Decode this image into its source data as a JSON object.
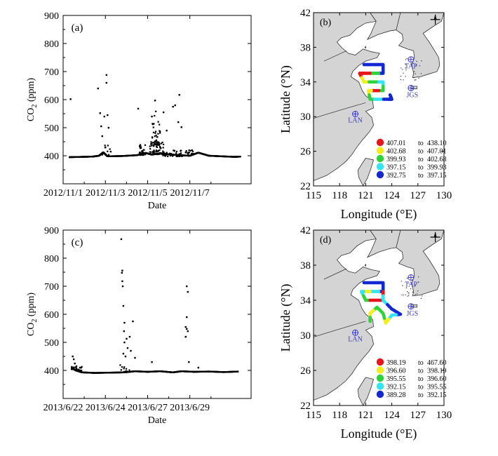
{
  "colors": {
    "sea": "#ffffff",
    "land": "#d4d4d4",
    "coast": "#333333",
    "station": "#3a3ad6",
    "points": "#000000"
  },
  "chart_data": [
    {
      "id": "a",
      "type": "scatter",
      "panel_label": "(a)",
      "xlabel": "Date",
      "ylabel_main": "CO",
      "ylabel_sub": "2",
      "ylabel_tail": " (ppm)",
      "ylim": [
        300,
        900
      ],
      "xlim": [
        0,
        8.9
      ],
      "yticks": [
        400,
        500,
        600,
        700,
        800,
        900
      ],
      "xticks": [
        {
          "label": "2012/11/1",
          "value": 0
        },
        {
          "label": "2012/11/3",
          "value": 2
        },
        {
          "label": "2012/11/5",
          "value": 4
        },
        {
          "label": "2012/11/7",
          "value": 6
        }
      ],
      "baseline": [
        [
          0.3,
          395
        ],
        [
          0.9,
          396
        ],
        [
          1.4,
          397
        ],
        [
          1.7,
          400
        ],
        [
          1.9,
          412
        ],
        [
          2.1,
          398
        ],
        [
          2.8,
          399
        ],
        [
          3.5,
          402
        ],
        [
          3.9,
          410
        ],
        [
          4.2,
          404
        ],
        [
          4.6,
          409
        ],
        [
          5.0,
          405
        ],
        [
          5.5,
          402
        ],
        [
          6.0,
          400
        ],
        [
          6.4,
          411
        ],
        [
          6.9,
          400
        ],
        [
          7.5,
          398
        ],
        [
          8.1,
          396
        ],
        [
          8.4,
          397
        ]
      ],
      "clusters": [
        {
          "x0": 3.6,
          "x1": 3.9,
          "y0": 402,
          "y1": 440,
          "n": 30
        },
        {
          "x0": 4.1,
          "x1": 4.8,
          "y0": 405,
          "y1": 450,
          "n": 60
        },
        {
          "x0": 4.2,
          "x1": 4.6,
          "y0": 440,
          "y1": 560,
          "n": 35
        },
        {
          "x0": 4.7,
          "x1": 6.2,
          "y0": 398,
          "y1": 420,
          "n": 50
        },
        {
          "x0": 1.8,
          "x1": 2.4,
          "y0": 402,
          "y1": 440,
          "n": 14
        }
      ],
      "outliers": [
        [
          0.35,
          602
        ],
        [
          1.65,
          640
        ],
        [
          1.75,
          552
        ],
        [
          1.8,
          505
        ],
        [
          1.85,
          470
        ],
        [
          2.05,
          688
        ],
        [
          2.05,
          660
        ],
        [
          1.95,
          540
        ],
        [
          2.1,
          545
        ],
        [
          2.15,
          500
        ],
        [
          2.0,
          430
        ],
        [
          2.25,
          415
        ],
        [
          4.35,
          597
        ],
        [
          3.55,
          568
        ],
        [
          4.2,
          540
        ],
        [
          5.5,
          617
        ],
        [
          5.3,
          580
        ],
        [
          5.2,
          575
        ],
        [
          4.9,
          490
        ],
        [
          4.75,
          555
        ],
        [
          5.6,
          502
        ],
        [
          5.45,
          520
        ],
        [
          5.8,
          412
        ],
        [
          6.1,
          420
        ]
      ]
    },
    {
      "id": "c",
      "type": "scatter",
      "panel_label": "(c)",
      "xlabel": "Date",
      "ylabel_main": "CO",
      "ylabel_sub": "2",
      "ylabel_tail": " (ppm)",
      "ylim": [
        300,
        900
      ],
      "xlim": [
        0,
        8.9
      ],
      "yticks": [
        400,
        500,
        600,
        700,
        800,
        900
      ],
      "xticks": [
        {
          "label": "2013/6/22",
          "value": 0
        },
        {
          "label": "2013/6/24",
          "value": 2
        },
        {
          "label": "2013/6/27",
          "value": 4
        },
        {
          "label": "2013/6/29",
          "value": 6
        }
      ],
      "baseline": [
        [
          0.4,
          410
        ],
        [
          0.6,
          400
        ],
        [
          0.9,
          393
        ],
        [
          1.5,
          391
        ],
        [
          2.2,
          392
        ],
        [
          2.9,
          393
        ],
        [
          3.4,
          397
        ],
        [
          4.0,
          395
        ],
        [
          4.6,
          397
        ],
        [
          5.2,
          393
        ],
        [
          5.6,
          397
        ],
        [
          6.2,
          395
        ],
        [
          6.9,
          396
        ],
        [
          7.6,
          394
        ],
        [
          8.3,
          396
        ]
      ],
      "clusters": [
        {
          "x0": 0.4,
          "x1": 0.9,
          "y0": 398,
          "y1": 420,
          "n": 25
        },
        {
          "x0": 2.7,
          "x1": 3.2,
          "y0": 395,
          "y1": 420,
          "n": 10
        }
      ],
      "outliers": [
        [
          0.45,
          450
        ],
        [
          0.5,
          440
        ],
        [
          0.55,
          425
        ],
        [
          0.8,
          410
        ],
        [
          2.75,
          868
        ],
        [
          2.8,
          756
        ],
        [
          2.78,
          748
        ],
        [
          2.8,
          718
        ],
        [
          2.82,
          700
        ],
        [
          2.85,
          630
        ],
        [
          2.9,
          570
        ],
        [
          2.88,
          540
        ],
        [
          2.9,
          500
        ],
        [
          2.85,
          460
        ],
        [
          2.95,
          450
        ],
        [
          3.0,
          513
        ],
        [
          3.05,
          480
        ],
        [
          3.3,
          575
        ],
        [
          3.15,
          520
        ],
        [
          3.2,
          470
        ],
        [
          3.4,
          445
        ],
        [
          4.2,
          430
        ],
        [
          5.85,
          700
        ],
        [
          5.9,
          680
        ],
        [
          5.85,
          590
        ],
        [
          5.8,
          555
        ],
        [
          5.85,
          548
        ],
        [
          5.9,
          540
        ],
        [
          5.8,
          520
        ],
        [
          5.95,
          430
        ],
        [
          6.4,
          410
        ]
      ]
    },
    {
      "id": "b",
      "type": "map",
      "panel_label": "(b)",
      "xlabel": "Longitude (°E)",
      "ylabel": "Latitude (°N)",
      "xlim": [
        115,
        130
      ],
      "ylim": [
        22,
        42
      ],
      "xticks": [
        115,
        118,
        121,
        124,
        127,
        130
      ],
      "yticks": [
        22,
        26,
        30,
        34,
        38,
        42
      ],
      "stations": [
        {
          "name": "TAP",
          "lon": 126.2,
          "lat": 36.6
        },
        {
          "name": "JGS",
          "lon": 126.2,
          "lat": 33.3
        },
        {
          "name": "LAN",
          "lon": 119.8,
          "lat": 30.3
        }
      ],
      "legend": [
        {
          "color": "#e8141c",
          "from": "407.01",
          "to": "438.10"
        },
        {
          "color": "#f2ee1e",
          "from": "402.68",
          "to": "407.01"
        },
        {
          "color": "#2fd23a",
          "from": "399.93",
          "to": "402.68"
        },
        {
          "color": "#33e5f0",
          "from": "397.15",
          "to": "399.93"
        },
        {
          "color": "#1428d2",
          "from": "392.75",
          "to": "397.15"
        }
      ],
      "track": [
        {
          "lon": 120.8,
          "lat": 36.0,
          "c": 4
        },
        {
          "lon": 122.0,
          "lat": 36.0,
          "c": 4
        },
        {
          "lon": 123.0,
          "lat": 36.0,
          "c": 4
        },
        {
          "lon": 123.0,
          "lat": 35.0,
          "c": 4
        },
        {
          "lon": 122.0,
          "lat": 35.0,
          "c": 2
        },
        {
          "lon": 121.0,
          "lat": 35.0,
          "c": 0
        },
        {
          "lon": 120.3,
          "lat": 35.0,
          "c": 0
        },
        {
          "lon": 120.8,
          "lat": 34.0,
          "c": 1
        },
        {
          "lon": 122.0,
          "lat": 34.0,
          "c": 2
        },
        {
          "lon": 123.0,
          "lat": 34.0,
          "c": 3
        },
        {
          "lon": 123.0,
          "lat": 33.0,
          "c": 2
        },
        {
          "lon": 122.0,
          "lat": 33.0,
          "c": 0
        },
        {
          "lon": 121.3,
          "lat": 33.0,
          "c": 1
        },
        {
          "lon": 121.5,
          "lat": 32.0,
          "c": 2
        },
        {
          "lon": 122.5,
          "lat": 32.0,
          "c": 3
        },
        {
          "lon": 123.6,
          "lat": 32.0,
          "c": 4
        },
        {
          "lon": 124.0,
          "lat": 32.0,
          "c": 4
        },
        {
          "lon": 123.8,
          "lat": 32.5,
          "c": 4
        }
      ]
    },
    {
      "id": "d",
      "type": "map",
      "panel_label": "(d)",
      "xlabel": "Longitude (°E)",
      "ylabel": "Latitude (°N)",
      "xlim": [
        115,
        130
      ],
      "ylim": [
        22,
        42
      ],
      "xticks": [
        115,
        118,
        121,
        124,
        127,
        130
      ],
      "yticks": [
        22,
        26,
        30,
        34,
        38,
        42
      ],
      "stations": [
        {
          "name": "TAP",
          "lon": 126.2,
          "lat": 36.6
        },
        {
          "name": "JGS",
          "lon": 126.2,
          "lat": 33.3
        },
        {
          "name": "LAN",
          "lon": 119.8,
          "lat": 30.3
        }
      ],
      "legend": [
        {
          "color": "#e8141c",
          "from": "398.19",
          "to": "467.60"
        },
        {
          "color": "#f2ee1e",
          "from": "396.60",
          "to": "398.19"
        },
        {
          "color": "#2fd23a",
          "from": "395.55",
          "to": "396.60"
        },
        {
          "color": "#33e5f0",
          "from": "392.15",
          "to": "395.55"
        },
        {
          "color": "#1428d2",
          "from": "389.28",
          "to": "392.15"
        }
      ],
      "track": [
        {
          "lon": 120.8,
          "lat": 36.0,
          "c": 4
        },
        {
          "lon": 122.0,
          "lat": 36.0,
          "c": 4
        },
        {
          "lon": 123.0,
          "lat": 36.0,
          "c": 4
        },
        {
          "lon": 123.0,
          "lat": 35.0,
          "c": 4
        },
        {
          "lon": 122.0,
          "lat": 35.0,
          "c": 3
        },
        {
          "lon": 121.0,
          "lat": 35.0,
          "c": 1
        },
        {
          "lon": 120.5,
          "lat": 35.0,
          "c": 3
        },
        {
          "lon": 121.0,
          "lat": 34.0,
          "c": 2
        },
        {
          "lon": 122.0,
          "lat": 34.0,
          "c": 0
        },
        {
          "lon": 123.0,
          "lat": 34.0,
          "c": 0
        },
        {
          "lon": 123.0,
          "lat": 35.0,
          "c": 0
        },
        {
          "lon": 123.0,
          "lat": 34.0,
          "c": 3
        },
        {
          "lon": 124.0,
          "lat": 33.0,
          "c": 4
        },
        {
          "lon": 125.0,
          "lat": 32.4,
          "c": 4
        },
        {
          "lon": 124.0,
          "lat": 32.3,
          "c": 3
        },
        {
          "lon": 123.3,
          "lat": 31.4,
          "c": 1
        },
        {
          "lon": 123.0,
          "lat": 32.5,
          "c": 2
        },
        {
          "lon": 122.3,
          "lat": 33.2,
          "c": 2
        },
        {
          "lon": 121.5,
          "lat": 32.5,
          "c": 1
        },
        {
          "lon": 121.5,
          "lat": 31.6,
          "c": 2
        }
      ]
    }
  ]
}
